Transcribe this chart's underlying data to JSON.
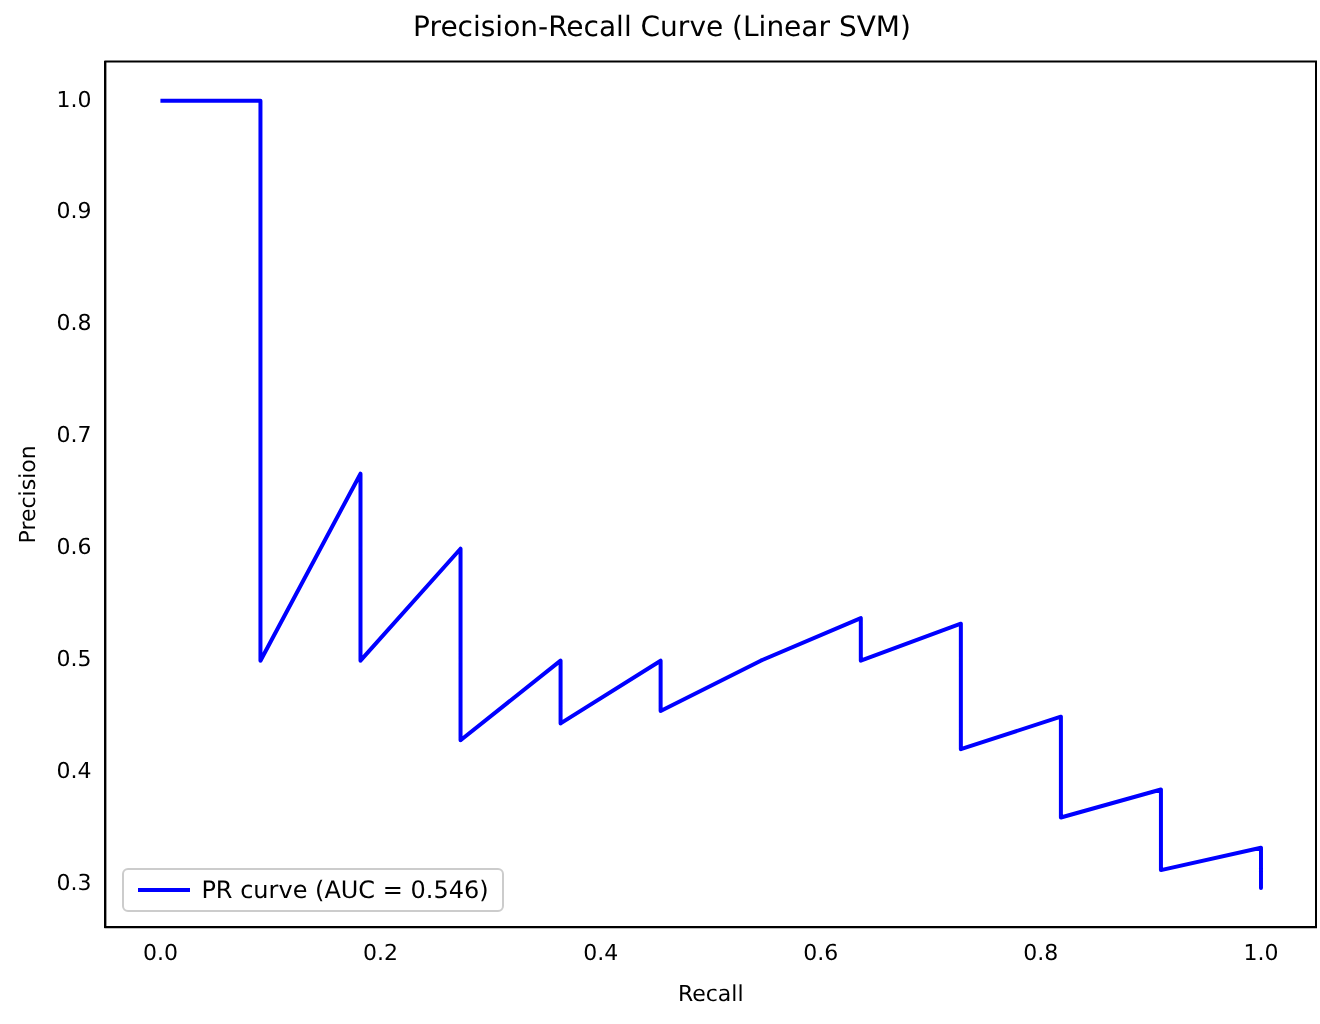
{
  "chart_data": {
    "type": "line",
    "title": "Precision-Recall Curve (Linear SVM)",
    "xlabel": "Recall",
    "ylabel": "Precision",
    "xlim": [
      -0.05,
      1.05
    ],
    "xticks": [
      {
        "value": 0,
        "label": "0.0"
      },
      0.2,
      0.4,
      0.6,
      0.8,
      {
        "value": 1,
        "label": "1.0"
      }
    ],
    "ylim": [
      0.262,
      1.035
    ],
    "yticks": [
      0.3,
      0.4,
      0.5,
      0.6,
      0.7,
      0.8,
      0.9,
      {
        "value": 1,
        "label": "1.0"
      }
    ],
    "grid": false,
    "legend": "bottom left",
    "marker": "none",
    "line_style": "solid",
    "series": [
      {
        "name": "PR curve (AUC = 0.546)",
        "color": "#0000ff",
        "x": [
          0,
          0.0909,
          0.0909,
          0.1818,
          0.1818,
          0.2727,
          0.2727,
          0.3636,
          0.3636,
          0.4545,
          0.4545,
          0.5455,
          0.6364,
          0.6364,
          0.7273,
          0.7273,
          0.8182,
          0.8182,
          0.9091,
          0.9091,
          1.0,
          1.0
        ],
        "values": [
          1,
          1,
          0.5,
          0.667,
          0.5,
          0.6,
          0.429,
          0.5,
          0.444,
          0.5,
          0.455,
          0.5,
          0.538,
          0.5,
          0.533,
          0.421,
          0.45,
          0.36,
          0.385,
          0.313,
          0.333,
          0.297
        ]
      }
    ]
  }
}
